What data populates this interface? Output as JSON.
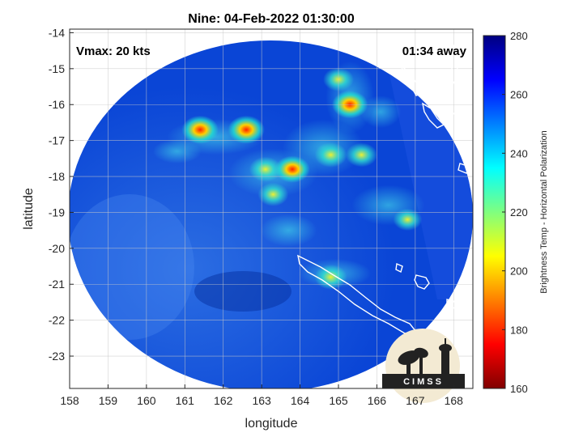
{
  "chart_data": {
    "type": "heatmap",
    "title": "Nine: 04-Feb-2022 01:30:00",
    "xlabel": "longitude",
    "ylabel": "latitude",
    "xlim": [
      158,
      168.5
    ],
    "ylim": [
      -23.9,
      -13.9
    ],
    "xticks": [
      "158",
      "159",
      "160",
      "161",
      "162",
      "163",
      "164",
      "165",
      "166",
      "167",
      "168"
    ],
    "yticks": [
      "-14",
      "-15",
      "-16",
      "-17",
      "-18",
      "-19",
      "-20",
      "-21",
      "-22",
      "-23"
    ],
    "grid": true,
    "annotations": {
      "vmax": "Vmax: 20 kts",
      "away": "01:34 away"
    },
    "colorbar": {
      "label": "Brightness Temp - Horizontal Polarization",
      "range": [
        160,
        280
      ],
      "ticks": [
        "280",
        "260",
        "240",
        "220",
        "200",
        "180",
        "160"
      ],
      "colormap": "jet"
    },
    "hotspots": [
      {
        "lon": 161.4,
        "lat": -16.7,
        "value": 190
      },
      {
        "lon": 162.6,
        "lat": -16.7,
        "value": 190
      },
      {
        "lon": 165.3,
        "lat": -16.0,
        "value": 195
      },
      {
        "lon": 163.8,
        "lat": -17.8,
        "value": 200
      },
      {
        "lon": 163.1,
        "lat": -17.8,
        "value": 215
      },
      {
        "lon": 164.8,
        "lat": -17.4,
        "value": 215
      },
      {
        "lon": 165.6,
        "lat": -17.4,
        "value": 220
      },
      {
        "lon": 164.8,
        "lat": -20.8,
        "value": 215
      },
      {
        "lon": 163.3,
        "lat": -18.5,
        "value": 225
      },
      {
        "lon": 165.0,
        "lat": -15.3,
        "value": 225
      },
      {
        "lon": 166.8,
        "lat": -19.2,
        "value": 235
      }
    ]
  },
  "logo": {
    "text": "CIMSS"
  },
  "colors": {
    "background_blue": "#0a45d6",
    "grid": "#c8c8c8",
    "coast": "#ffffff"
  }
}
